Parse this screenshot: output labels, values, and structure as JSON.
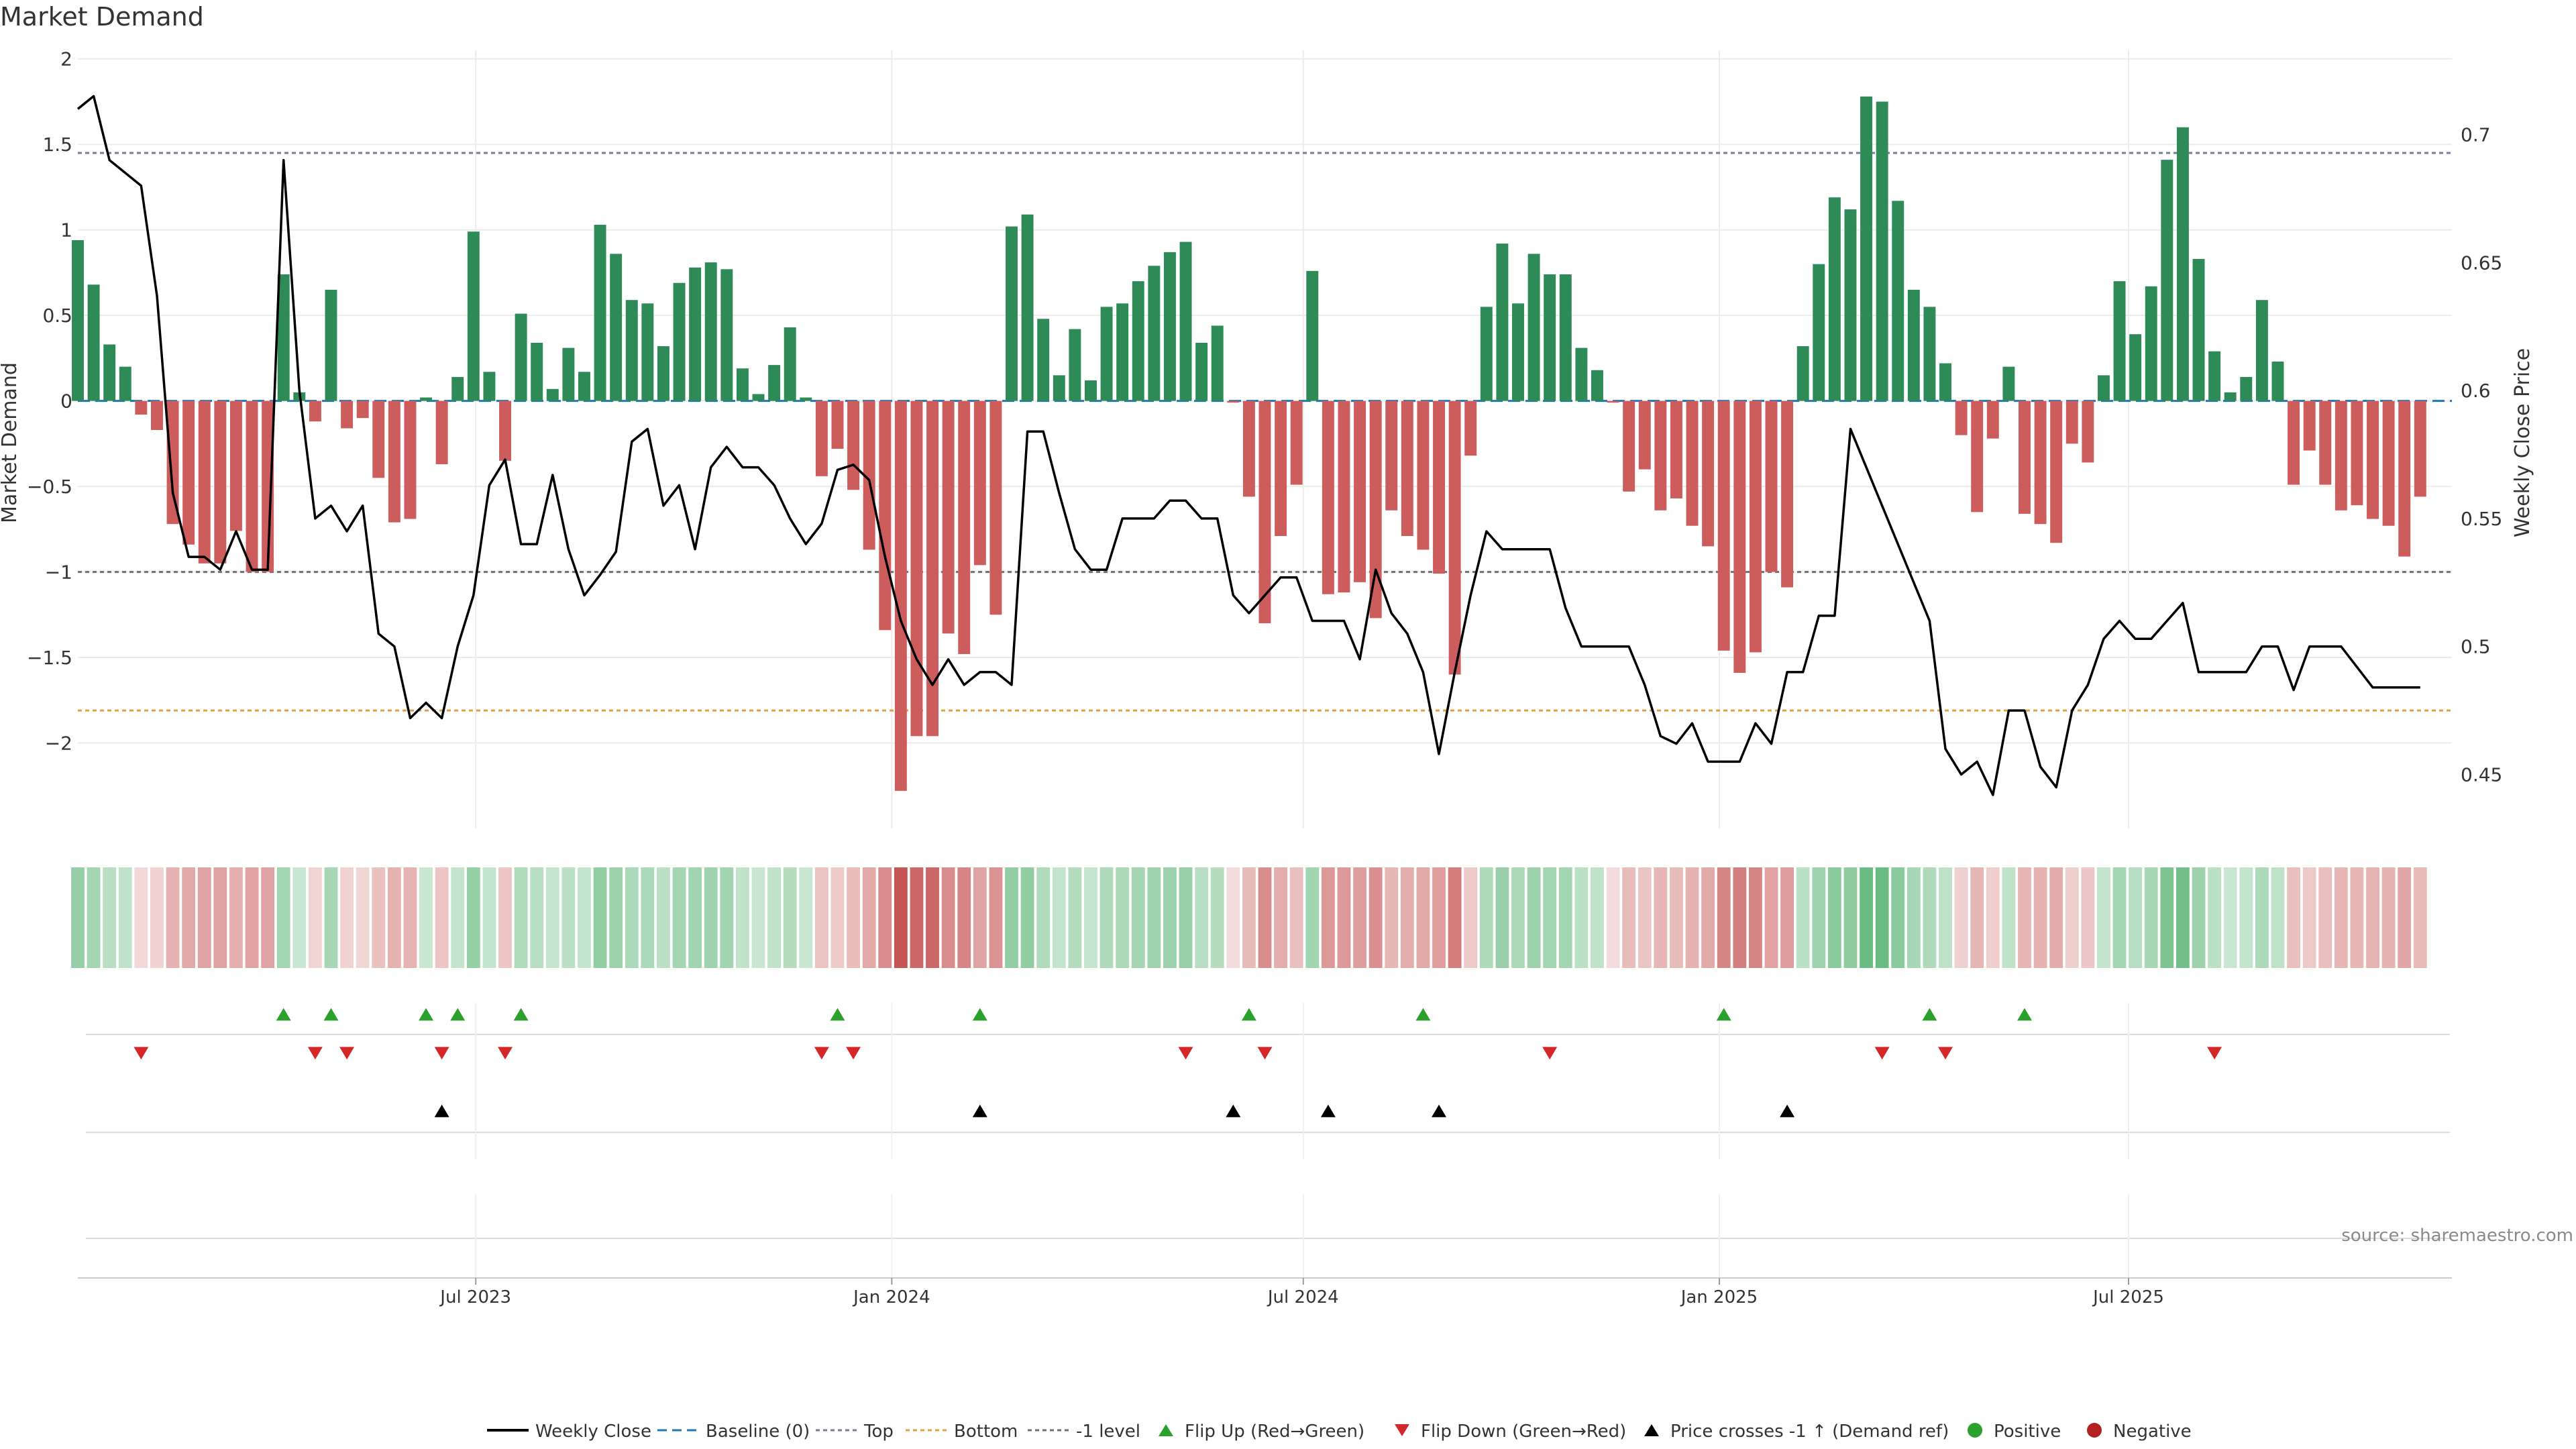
{
  "title": "Market Demand",
  "source": "source: sharemaestro.com",
  "chart_data": {
    "type": "bar",
    "title": "Market Demand",
    "ylabel": "Market Demand",
    "y2label": "Weekly Close Price",
    "ylim": [
      -2.5,
      2.05
    ],
    "y2lim": [
      0.4289,
      0.7329
    ],
    "yticks": [
      2,
      1.5,
      1,
      0.5,
      0,
      -0.5,
      -1,
      -1.5,
      -2
    ],
    "ytick_labels": [
      "2",
      "1.5",
      "1",
      "0.5",
      "0",
      "−0.5",
      "−1",
      "−1.5",
      "−2"
    ],
    "y2ticks": [
      0.7,
      0.65,
      0.6,
      0.55,
      0.5,
      0.45
    ],
    "y2tick_labels": [
      "0.7",
      "0.65",
      "0.6",
      "0.55",
      "0.5",
      "0.45"
    ],
    "x_start": "2023-01-06",
    "x_end": "2025-11-21",
    "date_ticks": [
      {
        "date": "2023-07-01",
        "label": "Jul 2023"
      },
      {
        "date": "2024-01-01",
        "label": "Jan 2024"
      },
      {
        "date": "2024-07-01",
        "label": "Jul 2024"
      },
      {
        "date": "2025-01-01",
        "label": "Jan 2025"
      },
      {
        "date": "2025-07-01",
        "label": "Jul 2025"
      }
    ],
    "week_start": "2023-01-06",
    "demand": [
      0.94,
      0.68,
      0.33,
      0.2,
      -0.08,
      -0.17,
      -0.72,
      -0.84,
      -0.95,
      -0.95,
      -0.76,
      -1.0,
      -1.0,
      0.74,
      0.05,
      -0.12,
      0.65,
      -0.16,
      -0.1,
      -0.45,
      -0.71,
      -0.69,
      0.02,
      -0.37,
      0.14,
      0.99,
      0.17,
      -0.35,
      0.51,
      0.34,
      0.07,
      0.31,
      0.17,
      1.03,
      0.86,
      0.59,
      0.57,
      0.32,
      0.69,
      0.78,
      0.81,
      0.77,
      0.19,
      0.04,
      0.21,
      0.43,
      0.02,
      -0.44,
      -0.28,
      -0.52,
      -0.87,
      -1.34,
      -2.28,
      -1.96,
      -1.96,
      -1.36,
      -1.48,
      -0.96,
      -1.25,
      1.02,
      1.09,
      0.48,
      0.15,
      0.42,
      0.12,
      0.55,
      0.57,
      0.7,
      0.79,
      0.87,
      0.93,
      0.34,
      0.44,
      -0.01,
      -0.56,
      -1.3,
      -0.79,
      -0.49,
      0.76,
      -1.13,
      -1.12,
      -1.06,
      -1.27,
      -0.64,
      -0.79,
      -0.87,
      -1.01,
      -1.6,
      -0.32,
      0.55,
      0.92,
      0.57,
      0.86,
      0.74,
      0.74,
      0.31,
      0.18,
      -0.01,
      -0.53,
      -0.4,
      -0.64,
      -0.57,
      -0.73,
      -0.85,
      -1.46,
      -1.59,
      -1.47,
      -1.0,
      -1.09,
      0.32,
      0.8,
      1.19,
      1.12,
      1.78,
      1.75,
      1.17,
      0.65,
      0.55,
      0.22,
      -0.2,
      -0.65,
      -0.22,
      0.2,
      -0.66,
      -0.72,
      -0.83,
      -0.25,
      -0.36,
      0.15,
      0.7,
      0.39,
      0.67,
      1.41,
      1.6,
      0.83,
      0.29,
      0.05,
      0.14,
      0.59,
      0.23,
      -0.49,
      -0.29,
      -0.49,
      -0.64,
      -0.61,
      -0.69,
      -0.73,
      -0.91,
      -0.56
    ],
    "series": [
      {
        "name": "Weekly Close",
        "axis": "right",
        "color": "#000000",
        "values": [
          0.71,
          0.715,
          0.69,
          0.685,
          0.68,
          0.637,
          0.56,
          0.535,
          0.535,
          0.53,
          0.545,
          0.53,
          0.53,
          0.69,
          0.6,
          0.55,
          0.555,
          0.545,
          0.555,
          0.505,
          0.5,
          0.472,
          0.478,
          0.472,
          0.5,
          0.52,
          0.563,
          0.573,
          0.54,
          0.54,
          0.567,
          0.538,
          0.52,
          0.528,
          0.537,
          0.58,
          0.585,
          0.555,
          0.563,
          0.538,
          0.57,
          0.578,
          0.57,
          0.57,
          0.563,
          0.55,
          0.54,
          0.548,
          0.569,
          0.571,
          0.565,
          0.535,
          0.51,
          0.495,
          0.485,
          0.495,
          0.485,
          0.49,
          0.49,
          0.485,
          0.584,
          0.584,
          0.56,
          0.538,
          0.53,
          0.53,
          0.55,
          0.55,
          0.55,
          0.557,
          0.557,
          0.55,
          0.55,
          0.52,
          0.513,
          0.52,
          0.527,
          0.527,
          0.51,
          0.51,
          0.51,
          0.495,
          0.53,
          0.513,
          0.505,
          0.49,
          0.458,
          0.49,
          0.52,
          0.545,
          0.538,
          0.538,
          0.538,
          0.538,
          0.515,
          0.5,
          0.5,
          0.5,
          0.5,
          0.485,
          0.465,
          0.462,
          0.47,
          0.455,
          0.455,
          0.455,
          0.47,
          0.462,
          0.49,
          0.49,
          0.512,
          0.512,
          0.585,
          0.57,
          0.555,
          0.54,
          0.525,
          0.51,
          0.46,
          0.45,
          0.455,
          0.442,
          0.475,
          0.475,
          0.453,
          0.445,
          0.475,
          0.485,
          0.503,
          0.51,
          0.503,
          0.503,
          0.51,
          0.517,
          0.49,
          0.49,
          0.49,
          0.49,
          0.5,
          0.5,
          0.483,
          0.5,
          0.5,
          0.5,
          0.492,
          0.484,
          0.484,
          0.484,
          0.484
        ]
      },
      {
        "name": "Baseline (0)",
        "value": 0,
        "color": "#1f77b4"
      },
      {
        "name": "Top",
        "value": 1.45,
        "color": "#7a7a9a"
      },
      {
        "name": "Bottom",
        "value": -1.81,
        "color": "#e0a040"
      },
      {
        "name": "-1 level",
        "value": -1,
        "color": "#707070"
      }
    ],
    "flip_up_weeks": [
      13,
      16,
      22,
      24,
      28,
      48,
      57,
      74,
      85,
      104,
      117,
      123
    ],
    "flip_down_weeks": [
      4,
      15,
      17,
      23,
      27,
      47,
      49,
      70,
      75,
      93,
      114,
      118,
      135
    ],
    "price_cross_weeks": [
      23,
      57,
      73,
      79,
      86,
      108
    ],
    "legend": [
      "Weekly Close",
      "Baseline (0)",
      "Top",
      "Bottom",
      "-1 level",
      "Flip Up (Red→Green)",
      "Flip Down (Green→Red)",
      "Price crosses -1 ↑ (Demand ref)",
      "Positive",
      "Negative"
    ],
    "colors": {
      "positive": "#2e8b57",
      "negative": "#cd5c5c",
      "flip_up": "#2ca02c",
      "flip_down": "#d62728",
      "cross": "#000000",
      "positive_dot": "#2ca02c",
      "negative_dot": "#b22222"
    }
  }
}
